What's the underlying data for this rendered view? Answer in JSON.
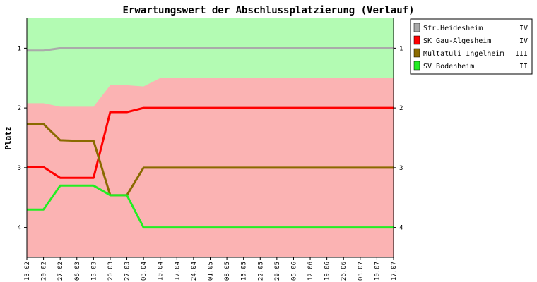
{
  "chart_data": {
    "type": "line",
    "title": "Erwartungswert der Abschlussplatzierung (Verlauf)",
    "ylabel": "Platz",
    "xlabel": "",
    "ylim": [
      4.5,
      0.5
    ],
    "y_reversed": true,
    "y_ticks": [
      "1",
      "2",
      "3",
      "4"
    ],
    "x": [
      "13.02",
      "20.02",
      "27.02",
      "06.03",
      "13.03",
      "20.03",
      "27.03",
      "03.04",
      "10.04",
      "17.04",
      "24.04",
      "01.05",
      "08.05",
      "15.05",
      "22.05",
      "29.05",
      "05.06",
      "12.06",
      "19.06",
      "26.06",
      "03.07",
      "10.07",
      "17.07"
    ],
    "bands": [
      {
        "name": "upper",
        "color": "#b3fbb3",
        "boundary": [
          1.92,
          1.92,
          1.98,
          1.98,
          1.98,
          1.62,
          1.62,
          1.64,
          1.5,
          1.5,
          1.5,
          1.5,
          1.5,
          1.5,
          1.5,
          1.5,
          1.5,
          1.5,
          1.5,
          1.5,
          1.5,
          1.5,
          1.5
        ]
      },
      {
        "name": "lower",
        "color": "#fbb3b3"
      }
    ],
    "legend_position": "top-right",
    "series": [
      {
        "name": "Sfr.Heidesheim",
        "league": "IV",
        "color": "#aaaaaa",
        "values": [
          1.04,
          1.04,
          1.0,
          1.0,
          1.0,
          1.0,
          1.0,
          1.0,
          1.0,
          1.0,
          1.0,
          1.0,
          1.0,
          1.0,
          1.0,
          1.0,
          1.0,
          1.0,
          1.0,
          1.0,
          1.0,
          1.0,
          1.0
        ]
      },
      {
        "name": "SK Gau-Algesheim",
        "league": "IV",
        "color": "#ff0000",
        "values": [
          2.99,
          2.99,
          3.17,
          3.17,
          3.17,
          2.07,
          2.07,
          2.0,
          2.0,
          2.0,
          2.0,
          2.0,
          2.0,
          2.0,
          2.0,
          2.0,
          2.0,
          2.0,
          2.0,
          2.0,
          2.0,
          2.0,
          2.0
        ]
      },
      {
        "name": "Multatuli Ingelheim",
        "league": "III",
        "color": "#8a6a00",
        "values": [
          2.27,
          2.27,
          2.54,
          2.55,
          2.55,
          3.46,
          3.46,
          3.0,
          3.0,
          3.0,
          3.0,
          3.0,
          3.0,
          3.0,
          3.0,
          3.0,
          3.0,
          3.0,
          3.0,
          3.0,
          3.0,
          3.0,
          3.0
        ]
      },
      {
        "name": "SV Bodenheim",
        "league": "II",
        "color": "#22ee22",
        "values": [
          3.7,
          3.7,
          3.3,
          3.3,
          3.3,
          3.46,
          3.46,
          4.0,
          4.0,
          4.0,
          4.0,
          4.0,
          4.0,
          4.0,
          4.0,
          4.0,
          4.0,
          4.0,
          4.0,
          4.0,
          4.0,
          4.0,
          4.0
        ]
      }
    ]
  }
}
